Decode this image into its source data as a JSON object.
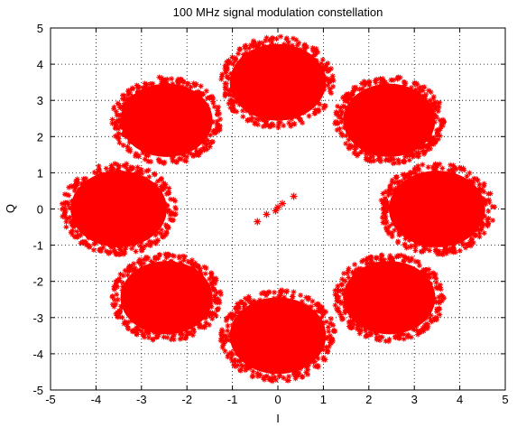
{
  "chart_data": {
    "type": "scatter",
    "title": "100 MHz signal modulation constellation",
    "xlabel": "I",
    "ylabel": "Q",
    "xlim": [
      -5,
      5
    ],
    "ylim": [
      -5,
      5
    ],
    "x_ticks": [
      -5,
      -4,
      -3,
      -2,
      -1,
      0,
      1,
      2,
      3,
      4,
      5
    ],
    "y_ticks": [
      -5,
      -4,
      -3,
      -2,
      -1,
      0,
      1,
      2,
      3,
      4,
      5
    ],
    "grid": "dotted",
    "marker": "star",
    "series": [
      {
        "color": "#ff0000",
        "marker": "*",
        "clusters": [
          {
            "center": [
              0.0,
              3.5
            ],
            "radius": 1.15
          },
          {
            "center": [
              0.0,
              -3.5
            ],
            "radius": 1.15
          },
          {
            "center": [
              3.5,
              0.0
            ],
            "radius": 1.15
          },
          {
            "center": [
              -3.5,
              0.0
            ],
            "radius": 1.15
          },
          {
            "center": [
              2.45,
              2.45
            ],
            "radius": 1.1
          },
          {
            "center": [
              -2.45,
              2.45
            ],
            "radius": 1.1
          },
          {
            "center": [
              2.45,
              -2.45
            ],
            "radius": 1.1
          },
          {
            "center": [
              -2.45,
              -2.45
            ],
            "radius": 1.1
          }
        ],
        "outliers": [
          {
            "x": 0.0,
            "y": 0.05
          },
          {
            "x": 0.1,
            "y": 0.15
          },
          {
            "x": -0.05,
            "y": -0.05
          },
          {
            "x": 0.35,
            "y": 0.35
          },
          {
            "x": -0.45,
            "y": -0.35
          },
          {
            "x": -0.25,
            "y": -0.15
          }
        ]
      }
    ]
  }
}
